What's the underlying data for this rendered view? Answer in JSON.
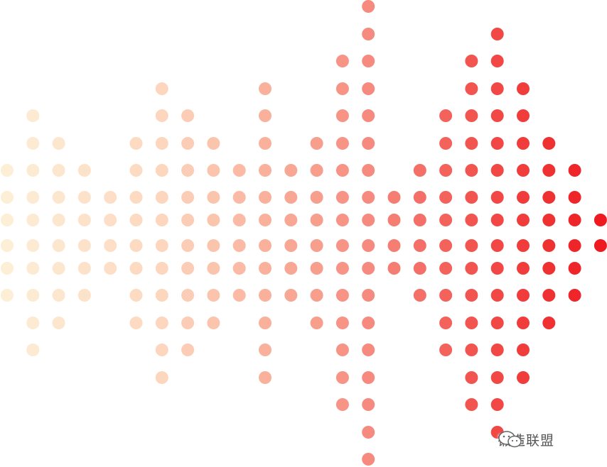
{
  "watermark": {
    "text": "锻造联盟"
  }
}
